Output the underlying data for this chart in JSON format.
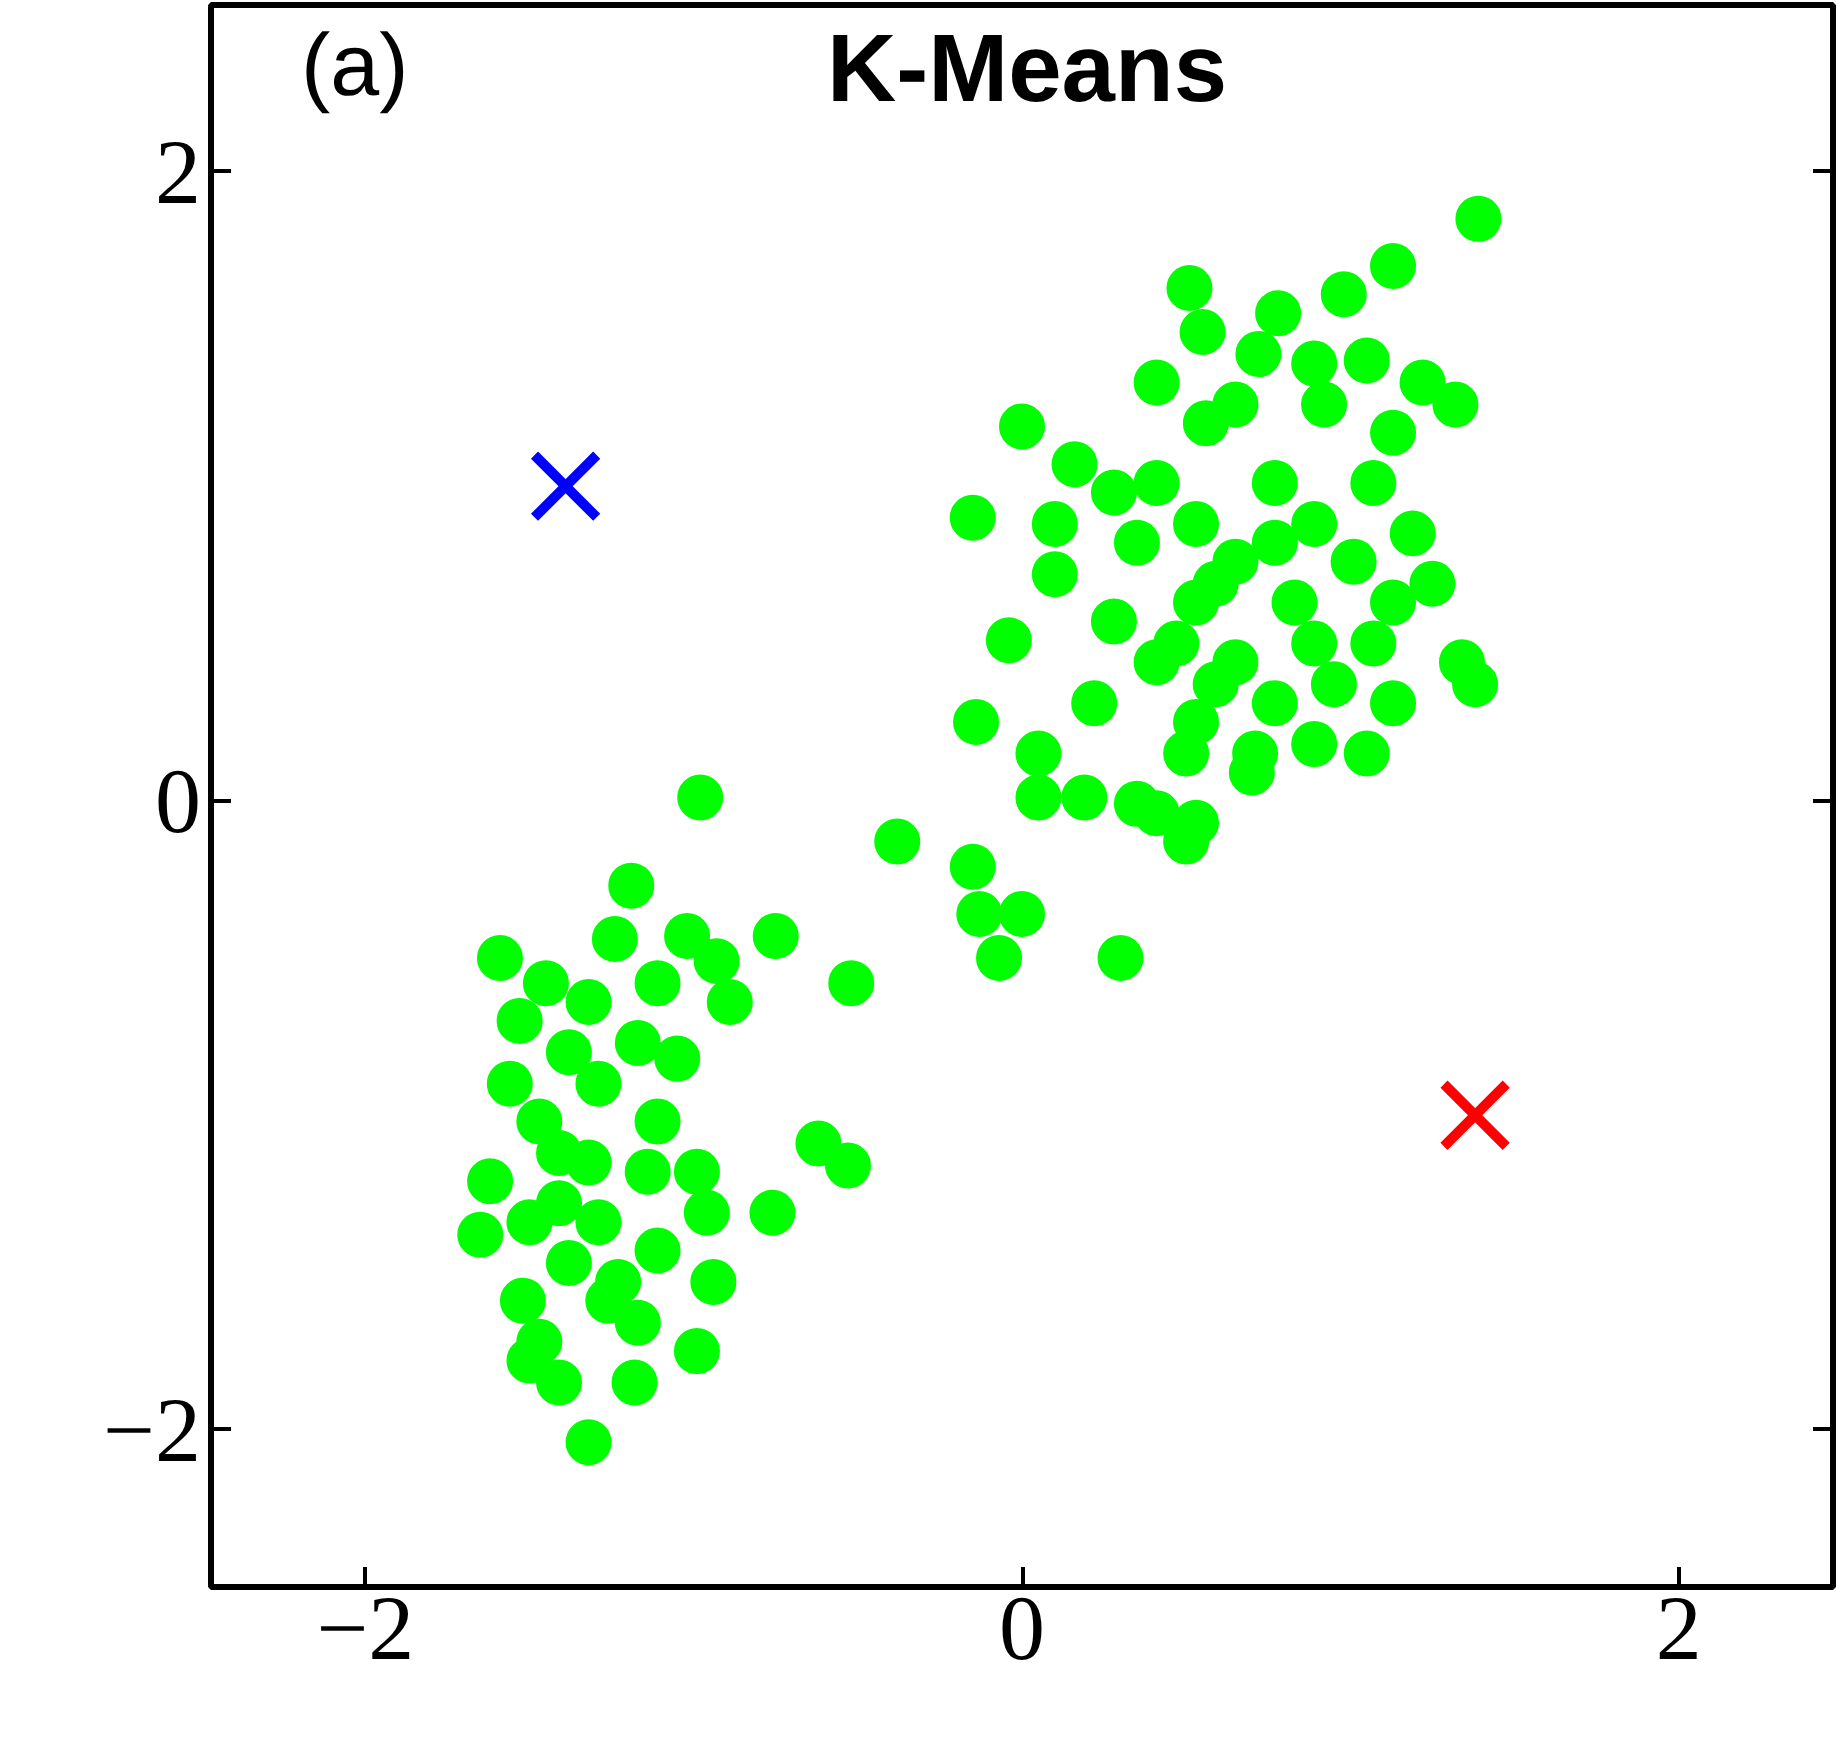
{
  "chart_data": {
    "type": "scatter",
    "title": "K-Means",
    "annotations": [
      "(a)"
    ],
    "xlim": [
      -2.47,
      2.47
    ],
    "ylim": [
      -2.5,
      2.53
    ],
    "xticks": [
      {
        "value": -2,
        "label": "−2"
      },
      0,
      2
    ],
    "yticks": [
      {
        "value": -2,
        "label": "−2"
      },
      0,
      2
    ],
    "grid": false,
    "series": [
      {
        "color": "#00ff00",
        "marker": "circle",
        "x": [
          1.39,
          1.13,
          0.51,
          0.98,
          0.78,
          0.55,
          0.72,
          0.41,
          0.89,
          1.05,
          1.22,
          1.32,
          0.92,
          0.65,
          0.56,
          0.0,
          1.13,
          0.16,
          0.41,
          0.28,
          0.77,
          1.07,
          0.1,
          -0.15,
          0.53,
          0.89,
          1.19,
          0.35,
          0.65,
          1.01,
          0.1,
          1.25,
          0.53,
          0.83,
          -0.04,
          0.28,
          1.07,
          1.34,
          1.38,
          0.65,
          0.41,
          0.95,
          0.22,
          0.77,
          1.13,
          0.53,
          -0.14,
          0.89,
          1.05,
          0.71,
          0.5,
          0.05,
          0.7,
          0.35,
          0.19,
          0.05,
          0.53,
          0.5,
          0.41,
          0.59,
          0.77,
          0.47,
          0.89,
          1.13,
          0.59,
          -0.38,
          -0.15,
          -0.13,
          0.0,
          -0.07,
          0.3,
          -0.52,
          -0.98,
          -1.19,
          -1.24,
          -1.59,
          -1.02,
          -0.75,
          -0.93,
          -1.45,
          -1.11,
          -0.89,
          -1.32,
          -1.53,
          -1.17,
          -1.38,
          -1.05,
          -1.56,
          -1.29,
          -1.47,
          -1.11,
          -1.32,
          -0.62,
          -0.53,
          -1.41,
          -1.14,
          -0.99,
          -1.65,
          -1.5,
          -1.29,
          -0.96,
          -0.76,
          -1.38,
          -1.11,
          -1.52,
          -1.26,
          -0.94,
          -1.47,
          -1.17,
          -0.99,
          -1.41,
          -1.18,
          -1.32,
          -1.5,
          -1.23,
          -1.41,
          -1.62
        ],
        "values": [
          1.85,
          1.7,
          1.63,
          1.61,
          1.55,
          1.49,
          1.42,
          1.33,
          1.39,
          1.4,
          1.33,
          1.26,
          1.26,
          1.26,
          1.2,
          1.19,
          1.17,
          1.07,
          1.01,
          0.98,
          1.01,
          1.01,
          0.88,
          0.9,
          0.88,
          0.88,
          0.85,
          0.82,
          0.76,
          0.76,
          0.72,
          0.69,
          0.63,
          0.63,
          0.51,
          0.57,
          0.5,
          0.44,
          0.37,
          0.44,
          0.44,
          0.37,
          0.31,
          0.31,
          0.31,
          0.25,
          0.25,
          0.18,
          0.15,
          0.15,
          0.15,
          0.15,
          0.09,
          -0.01,
          0.01,
          0.01,
          -0.07,
          -0.13,
          -0.04,
          0.69,
          0.82,
          0.5,
          0.5,
          0.63,
          0.37,
          -0.13,
          -0.21,
          -0.36,
          -0.36,
          -0.5,
          -0.5,
          -0.58,
          0.01,
          -0.27,
          -0.44,
          -0.5,
          -0.43,
          -0.43,
          -0.51,
          -0.58,
          -0.58,
          -0.64,
          -0.64,
          -0.7,
          -0.77,
          -0.8,
          -0.82,
          -0.9,
          -0.9,
          -1.02,
          -1.02,
          -1.15,
          -1.09,
          -1.16,
          -1.28,
          -1.18,
          -1.18,
          -1.38,
          -1.34,
          -1.34,
          -1.31,
          -1.31,
          -1.47,
          -1.43,
          -1.59,
          -1.59,
          -1.53,
          -1.72,
          -1.66,
          -1.75,
          -1.85,
          -1.85,
          -2.04,
          -1.78,
          -1.53,
          -1.12,
          -1.21
        ]
      },
      {
        "color": "#0000ff",
        "marker": "cross",
        "x": [
          -1.39
        ],
        "values": [
          1.0
        ]
      },
      {
        "color": "#ff0000",
        "marker": "cross",
        "x": [
          1.38
        ],
        "values": [
          -1.0
        ]
      }
    ]
  }
}
